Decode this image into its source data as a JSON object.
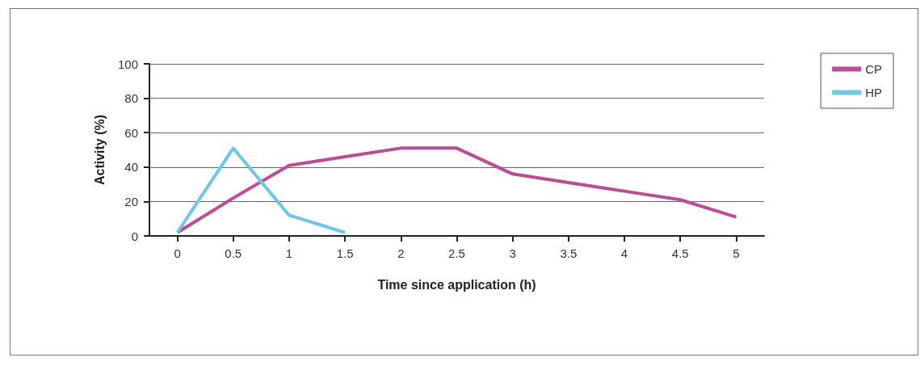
{
  "chart_data": {
    "type": "line",
    "xlabel": "Time since application (h)",
    "ylabel": "Activity (%)",
    "categories": [
      "0",
      "0.5",
      "1",
      "1.5",
      "2",
      "2.5",
      "3",
      "3.5",
      "4",
      "4.5",
      "5"
    ],
    "series": [
      {
        "name": "CP",
        "color": "#c04a94",
        "values": [
          2,
          22,
          41,
          46,
          51,
          51,
          36,
          31,
          26,
          21,
          11
        ]
      },
      {
        "name": "HP",
        "color": "#6cc8e6",
        "values": [
          2,
          51,
          12,
          2,
          null,
          null,
          null,
          null,
          null,
          null,
          null
        ]
      }
    ],
    "ylim": [
      0,
      100
    ],
    "yticks": [
      0,
      20,
      40,
      60,
      80,
      100
    ],
    "grid": "y",
    "legend": "top right",
    "marker": "none",
    "line_style": "solid"
  }
}
